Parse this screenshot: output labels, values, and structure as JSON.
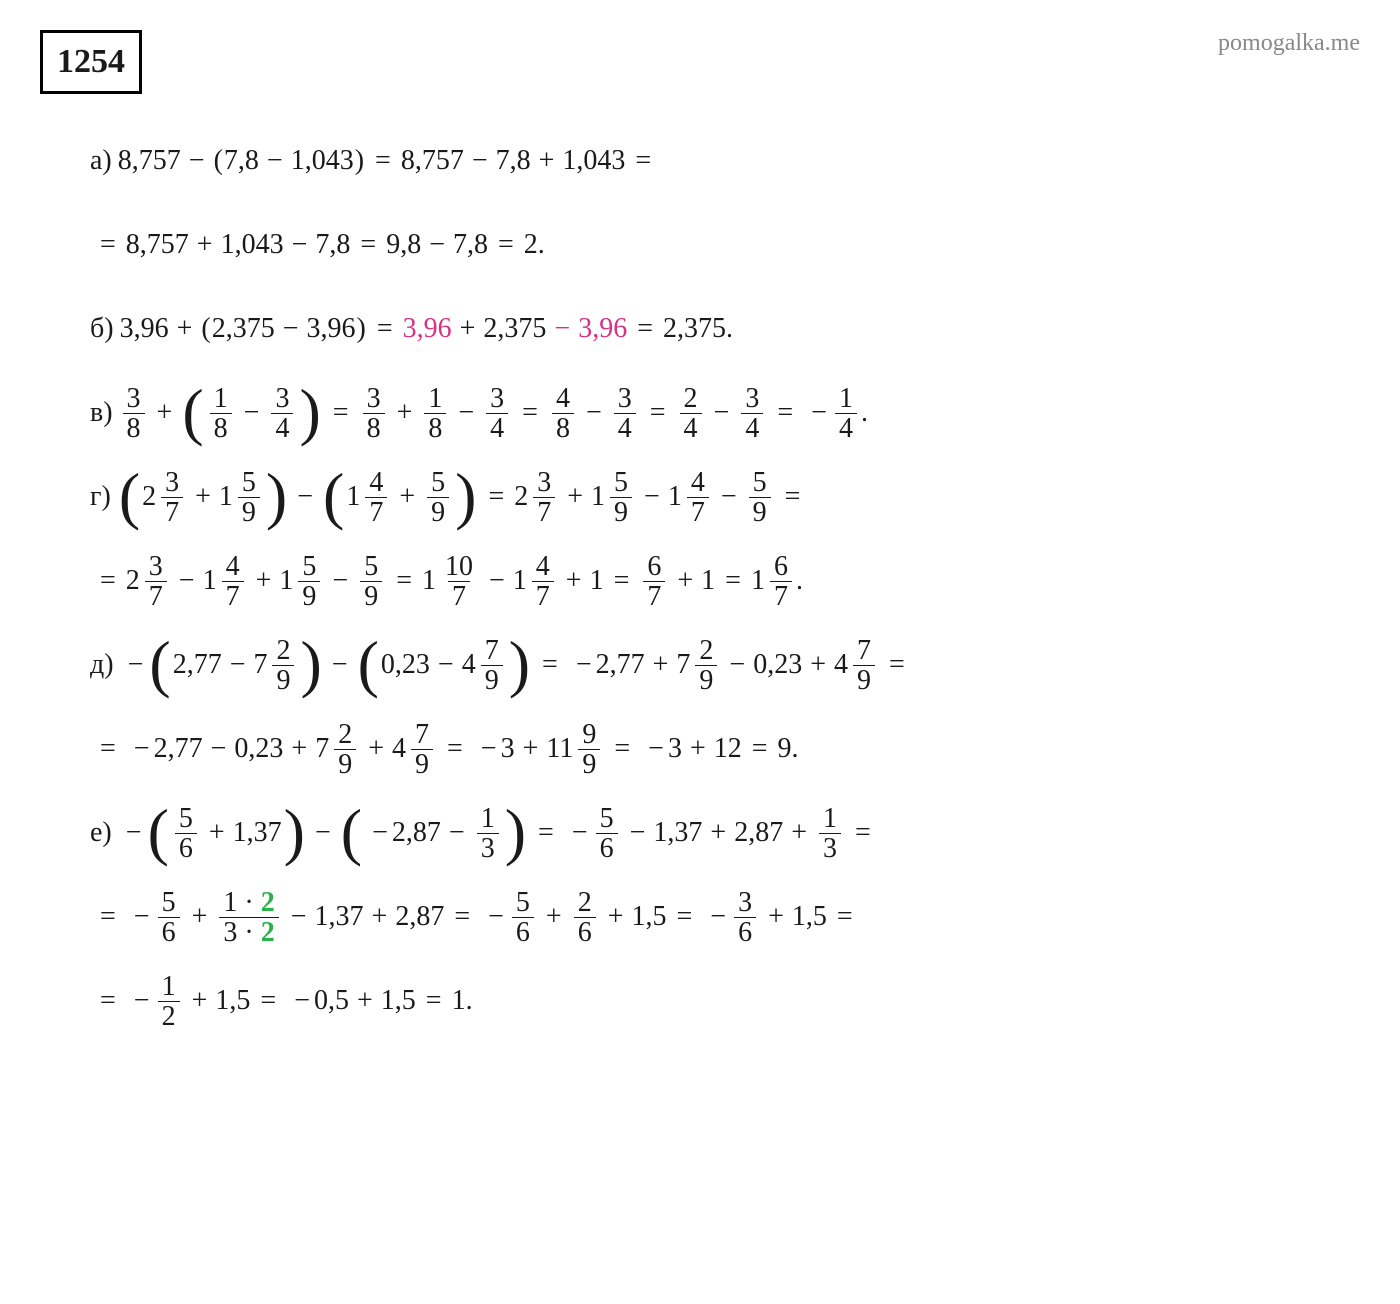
{
  "watermark": "pomogalka.me",
  "problem_number": "1254",
  "colors": {
    "text": "#1a1a1a",
    "pink": "#d63384",
    "green": "#2bb24c",
    "watermark": "#888888",
    "background": "#ffffff"
  },
  "labels": {
    "a": "а)",
    "b": "б)",
    "v": "в)",
    "g": "г)",
    "d": "д)",
    "e": "е)"
  },
  "a": {
    "n1": "8,757",
    "n2": "7,8",
    "n3": "1,043",
    "n4": "8,757",
    "n5": "7,8",
    "n6": "1,043",
    "n7": "8,757",
    "n8": "1,043",
    "n9": "7,8",
    "n10": "9,8",
    "n11": "7,8",
    "res": "2"
  },
  "b": {
    "n1": "3,96",
    "n2": "2,375",
    "n3": "3,96",
    "p1": "3,96",
    "n4": "2,375",
    "p2": "3,96",
    "res": "2,375"
  },
  "v": {
    "f1n": "3",
    "f1d": "8",
    "f2n": "1",
    "f2d": "8",
    "f3n": "3",
    "f3d": "4",
    "f4n": "3",
    "f4d": "8",
    "f5n": "1",
    "f5d": "8",
    "f6n": "3",
    "f6d": "4",
    "f7n": "4",
    "f7d": "8",
    "f8n": "3",
    "f8d": "4",
    "f9n": "2",
    "f9d": "4",
    "f10n": "3",
    "f10d": "4",
    "f11n": "1",
    "f11d": "4"
  },
  "g": {
    "m1w": "2",
    "m1n": "3",
    "m1d": "7",
    "m2w": "1",
    "m2n": "5",
    "m2d": "9",
    "m3w": "1",
    "m3n": "4",
    "m3d": "7",
    "f1n": "5",
    "f1d": "9",
    "m4w": "2",
    "m4n": "3",
    "m4d": "7",
    "m5w": "1",
    "m5n": "5",
    "m5d": "9",
    "m6w": "1",
    "m6n": "4",
    "m6d": "7",
    "f2n": "5",
    "f2d": "9",
    "m7w": "2",
    "m7n": "3",
    "m7d": "7",
    "m8w": "1",
    "m8n": "4",
    "m8d": "7",
    "m9w": "1",
    "m9n": "5",
    "m9d": "9",
    "f3n": "5",
    "f3d": "9",
    "m10w": "1",
    "m10n": "10",
    "m10d": "7",
    "m11w": "1",
    "m11n": "4",
    "m11d": "7",
    "one": "1",
    "f4n": "6",
    "f4d": "7",
    "one2": "1",
    "m12w": "1",
    "m12n": "6",
    "m12d": "7"
  },
  "d": {
    "n1": "2,77",
    "m1w": "7",
    "m1n": "2",
    "m1d": "9",
    "n2": "0,23",
    "m2w": "4",
    "m2n": "7",
    "m2d": "9",
    "n3": "2,77",
    "m3w": "7",
    "m3n": "2",
    "m3d": "9",
    "n4": "0,23",
    "m4w": "4",
    "m4n": "7",
    "m4d": "9",
    "n5": "2,77",
    "n6": "0,23",
    "m5w": "7",
    "m5n": "2",
    "m5d": "9",
    "m6w": "4",
    "m6n": "7",
    "m6d": "9",
    "n7": "3",
    "m7w": "11",
    "m7n": "9",
    "m7d": "9",
    "n8": "3",
    "n9": "12",
    "res": "9"
  },
  "e": {
    "f1n": "5",
    "f1d": "6",
    "n1": "1,37",
    "n2": "2,87",
    "f2n": "1",
    "f2d": "3",
    "f3n": "5",
    "f3d": "6",
    "n3": "1,37",
    "n4": "2,87",
    "f4n": "1",
    "f4d": "3",
    "f5n": "5",
    "f5d": "6",
    "cf_a": "1",
    "cf_b": "2",
    "cf_c": "3",
    "cf_d": "2",
    "n5": "1,37",
    "n6": "2,87",
    "f6n": "5",
    "f6d": "6",
    "f7n": "2",
    "f7d": "6",
    "n7": "1,5",
    "f8n": "3",
    "f8d": "6",
    "n8": "1,5",
    "f9n": "1",
    "f9d": "2",
    "n9": "1,5",
    "n10": "0,5",
    "n11": "1,5",
    "res": "1"
  }
}
